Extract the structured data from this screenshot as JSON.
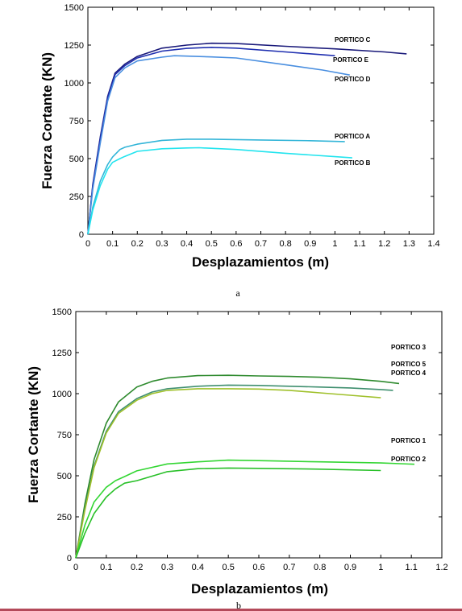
{
  "colors": {
    "bottom_rule": "#b44a5a"
  },
  "chart_data": [
    {
      "type": "line",
      "caption": "a",
      "xlabel": "Desplazamientos (m)",
      "ylabel": "Fuerza Cortante (KN)",
      "xlim": [
        0,
        1.4
      ],
      "ylim": [
        0,
        1500
      ],
      "xticks": [
        0,
        0.1,
        0.2,
        0.3,
        0.4,
        0.5,
        0.6,
        0.7,
        0.8,
        0.9,
        1,
        1.1,
        1.2,
        1.3,
        1.4
      ],
      "yticks": [
        0,
        250,
        500,
        750,
        1000,
        1250,
        1500
      ],
      "xtick_labels": [
        "0",
        "0.1",
        "0.2",
        "0.3",
        "0.4",
        "0.5",
        "0.6",
        "0.7",
        "0.8",
        "0.9",
        "1",
        "1.1",
        "1.2",
        "1.3",
        "1.4"
      ],
      "ytick_labels": [
        "0",
        "250",
        "500",
        "750",
        "1000",
        "1250",
        "1500"
      ],
      "grid": false,
      "series": [
        {
          "name": "PORTICO C",
          "color": "#1a1a7a",
          "x": [
            0,
            0.02,
            0.05,
            0.08,
            0.11,
            0.15,
            0.2,
            0.3,
            0.4,
            0.5,
            0.6,
            0.8,
            1.0,
            1.2,
            1.29
          ],
          "y": [
            0,
            330,
            640,
            910,
            1065,
            1125,
            1175,
            1230,
            1250,
            1262,
            1260,
            1242,
            1225,
            1205,
            1192
          ]
        },
        {
          "name": "PORTICO E",
          "color": "#1f2fb0",
          "x": [
            0,
            0.02,
            0.05,
            0.08,
            0.11,
            0.15,
            0.2,
            0.3,
            0.4,
            0.5,
            0.6,
            0.8,
            1.0
          ],
          "y": [
            0,
            320,
            630,
            900,
            1055,
            1115,
            1165,
            1210,
            1228,
            1235,
            1230,
            1205,
            1180
          ]
        },
        {
          "name": "PORTICO D",
          "color": "#4a8fe0",
          "x": [
            0,
            0.02,
            0.05,
            0.08,
            0.11,
            0.15,
            0.2,
            0.3,
            0.35,
            0.5,
            0.6,
            0.8,
            0.95,
            1.06
          ],
          "y": [
            0,
            300,
            600,
            880,
            1035,
            1100,
            1145,
            1170,
            1180,
            1172,
            1165,
            1120,
            1085,
            1052
          ]
        },
        {
          "name": "PORTICO A",
          "color": "#33b5d8",
          "x": [
            0,
            0.02,
            0.05,
            0.08,
            0.1,
            0.13,
            0.15,
            0.2,
            0.3,
            0.4,
            0.5,
            0.7,
            0.9,
            1.04
          ],
          "y": [
            0,
            180,
            350,
            460,
            510,
            560,
            575,
            595,
            620,
            628,
            628,
            623,
            618,
            612
          ]
        },
        {
          "name": "PORTICO B",
          "color": "#22e4ee",
          "x": [
            0,
            0.02,
            0.05,
            0.08,
            0.1,
            0.13,
            0.15,
            0.2,
            0.3,
            0.4,
            0.45,
            0.6,
            0.8,
            1.0,
            1.07
          ],
          "y": [
            0,
            160,
            320,
            430,
            475,
            500,
            515,
            548,
            565,
            570,
            572,
            560,
            535,
            513,
            505
          ]
        }
      ],
      "annotations": [
        "PORTICO C",
        "PORTICO E",
        "PORTICO D",
        "PORTICO A",
        "PORTICO B"
      ]
    },
    {
      "type": "line",
      "caption": "b",
      "xlabel": "Desplazamientos (m)",
      "ylabel": "Fuerza Cortante (KN)",
      "xlim": [
        0,
        1.2
      ],
      "ylim": [
        0,
        1500
      ],
      "xticks": [
        0,
        0.1,
        0.2,
        0.3,
        0.4,
        0.5,
        0.6,
        0.7,
        0.8,
        0.9,
        1,
        1.1,
        1.2
      ],
      "yticks": [
        0,
        250,
        500,
        750,
        1000,
        1250,
        1500
      ],
      "xtick_labels": [
        "0",
        "0.1",
        "0.2",
        "0.3",
        "0.4",
        "0.5",
        "0.6",
        "0.7",
        "0.8",
        "0.9",
        "1",
        "1.1",
        "1.2"
      ],
      "ytick_labels": [
        "0",
        "250",
        "500",
        "750",
        "1000",
        "1250",
        "1500"
      ],
      "grid": false,
      "series": [
        {
          "name": "PORTICO 3",
          "color": "#2e8a2e",
          "x": [
            0,
            0.03,
            0.06,
            0.1,
            0.14,
            0.2,
            0.25,
            0.3,
            0.4,
            0.5,
            0.6,
            0.7,
            0.8,
            0.9,
            1.0,
            1.06
          ],
          "y": [
            0,
            330,
            600,
            820,
            950,
            1040,
            1075,
            1095,
            1110,
            1112,
            1108,
            1105,
            1100,
            1090,
            1075,
            1062
          ]
        },
        {
          "name": "PORTICO 5",
          "color": "#3f8f6f",
          "x": [
            0,
            0.03,
            0.06,
            0.1,
            0.14,
            0.2,
            0.25,
            0.3,
            0.4,
            0.5,
            0.6,
            0.7,
            0.8,
            0.9,
            1.0,
            1.04
          ],
          "y": [
            0,
            300,
            560,
            770,
            890,
            970,
            1010,
            1030,
            1045,
            1052,
            1050,
            1045,
            1040,
            1035,
            1025,
            1020
          ]
        },
        {
          "name": "PORTICO 4",
          "color": "#9fc02a",
          "x": [
            0,
            0.03,
            0.06,
            0.1,
            0.14,
            0.2,
            0.25,
            0.3,
            0.4,
            0.5,
            0.6,
            0.7,
            0.8,
            0.9,
            1.0
          ],
          "y": [
            0,
            290,
            550,
            760,
            880,
            960,
            1000,
            1020,
            1030,
            1030,
            1028,
            1020,
            1005,
            990,
            975
          ]
        },
        {
          "name": "PORTICO 1",
          "color": "#33d633",
          "x": [
            0,
            0.03,
            0.06,
            0.1,
            0.13,
            0.16,
            0.2,
            0.3,
            0.4,
            0.5,
            0.6,
            0.8,
            1.0,
            1.11
          ],
          "y": [
            0,
            200,
            340,
            430,
            470,
            495,
            530,
            572,
            585,
            595,
            592,
            585,
            578,
            570
          ]
        },
        {
          "name": "PORTICO 2",
          "color": "#28c028",
          "x": [
            0,
            0.03,
            0.06,
            0.1,
            0.13,
            0.16,
            0.2,
            0.3,
            0.4,
            0.5,
            0.6,
            0.8,
            1.0
          ],
          "y": [
            0,
            150,
            270,
            370,
            420,
            455,
            470,
            525,
            543,
            547,
            545,
            540,
            532
          ]
        }
      ],
      "annotations": [
        "PORTICO 3",
        "PORTICO 5",
        "PORTICO 4",
        "PORTICO 1",
        "PORTICO 2"
      ]
    }
  ]
}
